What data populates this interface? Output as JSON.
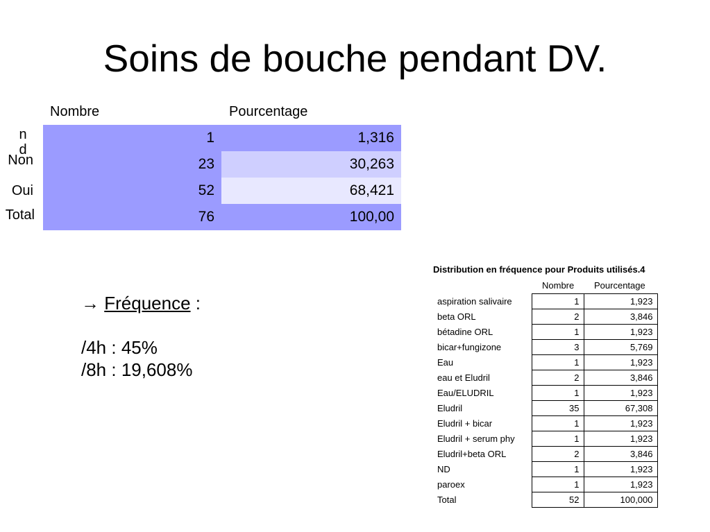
{
  "title": "Soins de bouche pendant DV.",
  "main_table": {
    "col_nombre": "Nombre",
    "col_pourcentage": "Pourcentage",
    "rows": [
      {
        "label": "n\nd",
        "nombre": "1",
        "pourcentage": "1,316",
        "bg_n": "#9b9bff",
        "bg_p": "#9b9bff"
      },
      {
        "label": "Non",
        "nombre": "23",
        "pourcentage": "30,263",
        "bg_n": "#9b9bff",
        "bg_p": "#cfcfff"
      },
      {
        "label": "Oui",
        "nombre": "52",
        "pourcentage": "68,421",
        "bg_n": "#9b9bff",
        "bg_p": "#e8e8ff"
      },
      {
        "label": "Total",
        "nombre": "76",
        "pourcentage": "100,00",
        "bg_n": "#9b9bff",
        "bg_p": "#9b9bff"
      }
    ]
  },
  "frequency": {
    "arrow": "→",
    "label": "Fréquence",
    "colon": " :",
    "line1": "/4h : 45%",
    "line2": "/8h : 19,608%"
  },
  "distribution": {
    "title": "Distribution en fréquence  pour Produits utilisés.4",
    "col_nombre": "Nombre",
    "col_pourcentage": "Pourcentage",
    "rows": [
      {
        "label": "aspiration salivaire",
        "nombre": "1",
        "pourcentage": "1,923"
      },
      {
        "label": "beta ORL",
        "nombre": "2",
        "pourcentage": "3,846"
      },
      {
        "label": "bétadine ORL",
        "nombre": "1",
        "pourcentage": "1,923"
      },
      {
        "label": "bicar+fungizone",
        "nombre": "3",
        "pourcentage": "5,769"
      },
      {
        "label": "Eau",
        "nombre": "1",
        "pourcentage": "1,923"
      },
      {
        "label": "eau et Eludril",
        "nombre": "2",
        "pourcentage": "3,846"
      },
      {
        "label": "Eau/ELUDRIL",
        "nombre": "1",
        "pourcentage": "1,923"
      },
      {
        "label": "Eludril",
        "nombre": "35",
        "pourcentage": "67,308"
      },
      {
        "label": "Eludril + bicar",
        "nombre": "1",
        "pourcentage": "1,923"
      },
      {
        "label": "Eludril + serum phy",
        "nombre": "1",
        "pourcentage": "1,923"
      },
      {
        "label": "Eludril+beta ORL",
        "nombre": "2",
        "pourcentage": "3,846"
      },
      {
        "label": "ND",
        "nombre": "1",
        "pourcentage": "1,923"
      },
      {
        "label": "paroex",
        "nombre": "1",
        "pourcentage": "1,923"
      },
      {
        "label": "Total",
        "nombre": "52",
        "pourcentage": "100,000"
      }
    ]
  }
}
